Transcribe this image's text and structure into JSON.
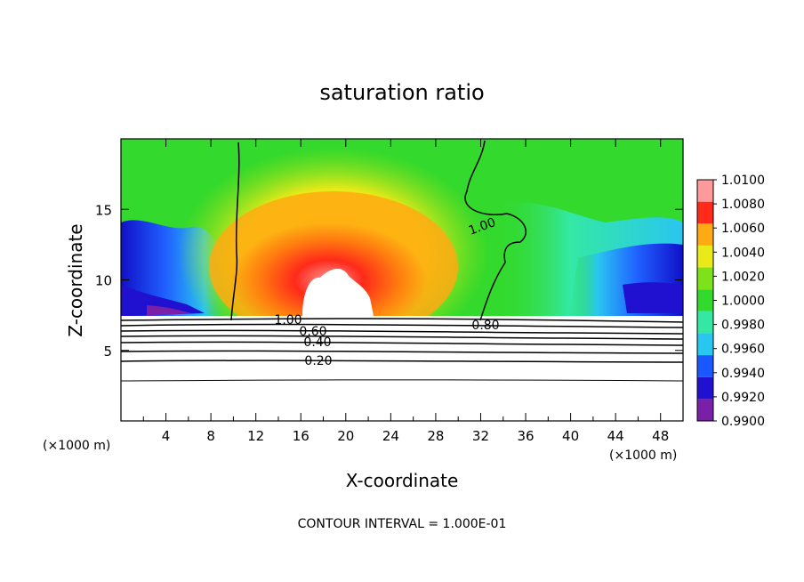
{
  "chart_data": {
    "type": "heatmap",
    "title": "saturation ratio",
    "xlabel": "X-coordinate",
    "ylabel": "Z-coordinate",
    "x_unit": "(×1000 m)",
    "x_unit_right": "(×1000 m)",
    "xlim": [
      0,
      50
    ],
    "ylim": [
      0,
      20
    ],
    "x_ticks": [
      "4",
      "8",
      "12",
      "16",
      "20",
      "24",
      "28",
      "32",
      "36",
      "40",
      "44",
      "48"
    ],
    "y_ticks": [
      "5",
      "10",
      "15"
    ],
    "colorbar": {
      "levels": [
        "0.9900",
        "0.9920",
        "0.9940",
        "0.9960",
        "0.9980",
        "1.0000",
        "1.0020",
        "1.0040",
        "1.0060",
        "1.0080",
        "1.0100"
      ],
      "colors": [
        "#7a1fa8",
        "#2010d0",
        "#1a58ff",
        "#29c6f0",
        "#34e8a4",
        "#33d92c",
        "#7ee21a",
        "#eaea18",
        "#ffaa12",
        "#ff2a1a",
        "#ff9a9a"
      ]
    },
    "contour_labels": [
      "1.00",
      "1.00",
      "0.80",
      "0.60",
      "0.40",
      "0.20"
    ],
    "contour_interval_text": "CONTOUR INTERVAL = 1.000E-01"
  }
}
